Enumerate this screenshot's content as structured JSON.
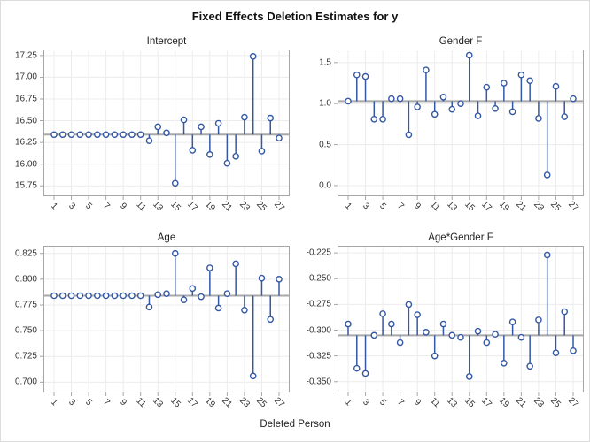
{
  "title": "Fixed Effects Deletion Estimates for y",
  "xlabel": "Deleted Person",
  "colors": {
    "stem": "#3458A4",
    "marker_fill": "#ffffff",
    "reference_line": "#a8a8a8",
    "gridline": "#ececec",
    "plot_border": "#a6a6a6",
    "tick_mark": "#a6a6a6",
    "tick_text": "#333333",
    "panel_title_text": "#222222",
    "title_text": "#111111"
  },
  "chart_data": [
    {
      "type": "stem",
      "title": "Intercept",
      "xlabel": "Deleted Person",
      "categories": [
        1,
        2,
        3,
        4,
        5,
        6,
        7,
        8,
        9,
        10,
        11,
        12,
        13,
        14,
        15,
        16,
        17,
        18,
        19,
        20,
        21,
        22,
        23,
        24,
        25,
        26,
        27
      ],
      "xticks": [
        1,
        3,
        5,
        7,
        9,
        11,
        13,
        15,
        17,
        19,
        21,
        23,
        25,
        27
      ],
      "baseline": 16.34,
      "ylim": [
        15.63,
        17.32
      ],
      "yticks": [
        15.75,
        16.0,
        16.25,
        16.5,
        16.75,
        17.0,
        17.25
      ],
      "ytick_labels": [
        "15.75",
        "16.00",
        "16.25",
        "16.50",
        "16.75",
        "17.00",
        "17.25"
      ],
      "values": [
        16.34,
        16.34,
        16.34,
        16.34,
        16.34,
        16.34,
        16.34,
        16.34,
        16.34,
        16.34,
        16.34,
        16.27,
        16.43,
        16.36,
        15.78,
        16.51,
        16.16,
        16.43,
        16.11,
        16.47,
        16.01,
        16.09,
        16.54,
        17.24,
        16.15,
        16.53,
        16.3
      ]
    },
    {
      "type": "stem",
      "title": "Gender F",
      "xlabel": "Deleted Person",
      "categories": [
        1,
        2,
        3,
        4,
        5,
        6,
        7,
        8,
        9,
        10,
        11,
        12,
        13,
        14,
        15,
        16,
        17,
        18,
        19,
        20,
        21,
        22,
        23,
        24,
        25,
        26,
        27
      ],
      "xticks": [
        1,
        3,
        5,
        7,
        9,
        11,
        13,
        15,
        17,
        19,
        21,
        23,
        25,
        27
      ],
      "baseline": 1.03,
      "ylim": [
        -0.13,
        1.66
      ],
      "yticks": [
        0.0,
        0.5,
        1.0,
        1.5
      ],
      "ytick_labels": [
        "0.0",
        "0.5",
        "1.0",
        "1.5"
      ],
      "values": [
        1.03,
        1.35,
        1.33,
        0.81,
        0.81,
        1.06,
        1.06,
        0.62,
        0.96,
        1.41,
        0.87,
        1.08,
        0.93,
        1.0,
        1.59,
        0.85,
        1.2,
        0.94,
        1.25,
        0.9,
        1.35,
        1.28,
        0.82,
        0.13,
        1.21,
        0.84,
        1.06
      ]
    },
    {
      "type": "stem",
      "title": "Age",
      "xlabel": "Deleted Person",
      "categories": [
        1,
        2,
        3,
        4,
        5,
        6,
        7,
        8,
        9,
        10,
        11,
        12,
        13,
        14,
        15,
        16,
        17,
        18,
        19,
        20,
        21,
        22,
        23,
        24,
        25,
        26,
        27
      ],
      "xticks": [
        1,
        3,
        5,
        7,
        9,
        11,
        13,
        15,
        17,
        19,
        21,
        23,
        25,
        27
      ],
      "baseline": 0.784,
      "ylim": [
        0.69,
        0.8325
      ],
      "yticks": [
        0.7,
        0.725,
        0.75,
        0.775,
        0.8,
        0.825
      ],
      "ytick_labels": [
        "0.700",
        "0.725",
        "0.750",
        "0.775",
        "0.800",
        "0.825"
      ],
      "values": [
        0.784,
        0.784,
        0.784,
        0.784,
        0.784,
        0.784,
        0.784,
        0.784,
        0.784,
        0.784,
        0.784,
        0.773,
        0.785,
        0.786,
        0.825,
        0.78,
        0.791,
        0.783,
        0.811,
        0.772,
        0.786,
        0.815,
        0.77,
        0.706,
        0.801,
        0.761,
        0.8
      ]
    },
    {
      "type": "stem",
      "title": "Age*Gender F",
      "xlabel": "Deleted Person",
      "categories": [
        1,
        2,
        3,
        4,
        5,
        6,
        7,
        8,
        9,
        10,
        11,
        12,
        13,
        14,
        15,
        16,
        17,
        18,
        19,
        20,
        21,
        22,
        23,
        24,
        25,
        26,
        27
      ],
      "xticks": [
        1,
        3,
        5,
        7,
        9,
        11,
        13,
        15,
        17,
        19,
        21,
        23,
        25,
        27
      ],
      "baseline": -0.305,
      "ylim": [
        -0.3605,
        -0.218
      ],
      "yticks": [
        -0.35,
        -0.325,
        -0.3,
        -0.275,
        -0.25,
        -0.225
      ],
      "ytick_labels": [
        "-0.350",
        "-0.325",
        "-0.300",
        "-0.275",
        "-0.250",
        "-0.225"
      ],
      "values": [
        -0.294,
        -0.337,
        -0.342,
        -0.305,
        -0.284,
        -0.294,
        -0.312,
        -0.275,
        -0.285,
        -0.302,
        -0.325,
        -0.294,
        -0.305,
        -0.307,
        -0.345,
        -0.301,
        -0.312,
        -0.304,
        -0.332,
        -0.292,
        -0.307,
        -0.335,
        -0.29,
        -0.227,
        -0.322,
        -0.282,
        -0.32
      ]
    }
  ]
}
